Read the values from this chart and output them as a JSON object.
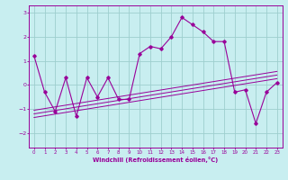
{
  "title": "",
  "xlabel": "Windchill (Refroidissement éolien,°C)",
  "ylabel": "",
  "background_color": "#c8eef0",
  "grid_color": "#9ecece",
  "line_color": "#990099",
  "x": [
    0,
    1,
    2,
    3,
    4,
    5,
    6,
    7,
    8,
    9,
    10,
    11,
    12,
    13,
    14,
    15,
    16,
    17,
    18,
    19,
    20,
    21,
    22,
    23
  ],
  "y_main": [
    1.2,
    -0.3,
    -1.1,
    0.3,
    -1.3,
    0.3,
    -0.5,
    0.3,
    -0.6,
    -0.6,
    1.3,
    1.6,
    1.5,
    2.0,
    2.8,
    2.5,
    2.2,
    1.8,
    1.8,
    -0.3,
    -0.2,
    -1.6,
    -0.3,
    0.1
  ],
  "y_trend1": [
    -1.35,
    -1.28,
    -1.21,
    -1.14,
    -1.07,
    -1.0,
    -0.93,
    -0.86,
    -0.79,
    -0.72,
    -0.65,
    -0.58,
    -0.51,
    -0.44,
    -0.37,
    -0.3,
    -0.23,
    -0.16,
    -0.09,
    -0.02,
    0.05,
    0.12,
    0.19,
    0.26
  ],
  "y_trend2": [
    -1.2,
    -1.13,
    -1.06,
    -0.99,
    -0.92,
    -0.85,
    -0.78,
    -0.71,
    -0.64,
    -0.57,
    -0.5,
    -0.43,
    -0.36,
    -0.29,
    -0.22,
    -0.15,
    -0.08,
    -0.01,
    0.06,
    0.13,
    0.2,
    0.27,
    0.34,
    0.41
  ],
  "y_trend3": [
    -1.05,
    -0.98,
    -0.91,
    -0.84,
    -0.77,
    -0.7,
    -0.63,
    -0.56,
    -0.49,
    -0.42,
    -0.35,
    -0.28,
    -0.21,
    -0.14,
    -0.07,
    0.0,
    0.07,
    0.14,
    0.21,
    0.28,
    0.35,
    0.42,
    0.49,
    0.56
  ],
  "xlim": [
    -0.5,
    23.5
  ],
  "ylim": [
    -2.6,
    3.3
  ],
  "yticks": [
    -2,
    -1,
    0,
    1,
    2,
    3
  ],
  "xticks": [
    0,
    1,
    2,
    3,
    4,
    5,
    6,
    7,
    8,
    9,
    10,
    11,
    12,
    13,
    14,
    15,
    16,
    17,
    18,
    19,
    20,
    21,
    22,
    23
  ]
}
